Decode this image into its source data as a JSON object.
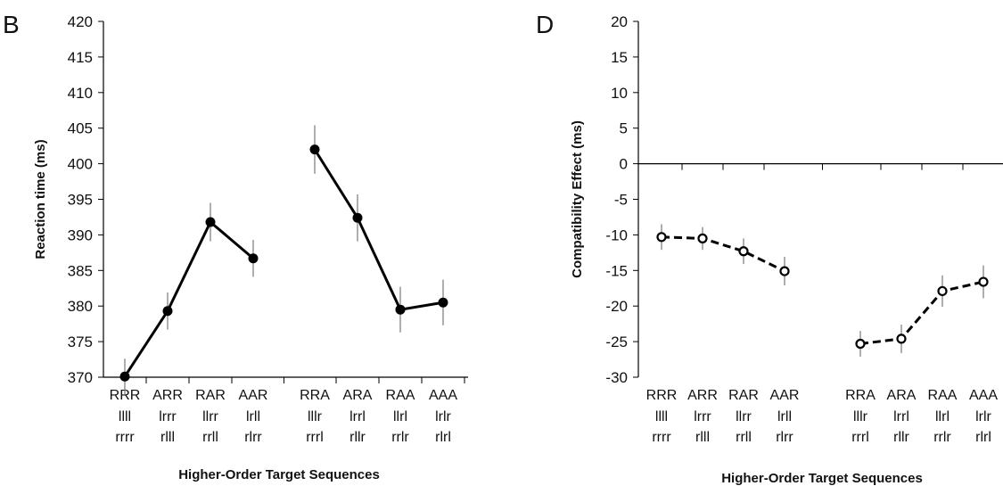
{
  "chart_data": [
    {
      "type": "line",
      "panel_label": "B",
      "title": "",
      "xlabel": "Higher-Order Target Sequences",
      "ylabel": "Reaction time (ms)",
      "ylim": [
        370,
        420
      ],
      "yticks": [
        370,
        375,
        380,
        385,
        390,
        395,
        400,
        405,
        410,
        415,
        420
      ],
      "grid": false,
      "legend": "none",
      "line_style": "solid",
      "marker": "filled-circle",
      "color": "#000000",
      "groups": [
        {
          "categories": [
            {
              "seq": "RRR",
              "l1": "llll",
              "l2": "rrrr"
            },
            {
              "seq": "ARR",
              "l1": "lrrr",
              "l2": "rlll"
            },
            {
              "seq": "RAR",
              "l1": "llrr",
              "l2": "rrll"
            },
            {
              "seq": "AAR",
              "l1": "lrll",
              "l2": "rlrr"
            }
          ],
          "values": [
            370.1,
            379.3,
            391.8,
            386.7
          ],
          "errors": [
            2.5,
            2.6,
            2.7,
            2.6
          ]
        },
        {
          "categories": [
            {
              "seq": "RRA",
              "l1": "lllr",
              "l2": "rrrl"
            },
            {
              "seq": "ARA",
              "l1": "lrrl",
              "l2": "rllr"
            },
            {
              "seq": "RAA",
              "l1": "llrl",
              "l2": "rrlr"
            },
            {
              "seq": "AAA",
              "l1": "lrlr",
              "l2": "rlrl"
            }
          ],
          "values": [
            402.0,
            392.4,
            379.5,
            380.5
          ],
          "errors": [
            3.4,
            3.3,
            3.2,
            3.2
          ]
        }
      ]
    },
    {
      "type": "line",
      "panel_label": "D",
      "title": "",
      "xlabel": "Higher-Order Target Sequences",
      "ylabel": "Compatibility Effect (ms)",
      "ylim": [
        -30,
        20
      ],
      "yticks": [
        -30,
        -25,
        -20,
        -15,
        -10,
        -5,
        0,
        5,
        10,
        15,
        20
      ],
      "grid": false,
      "legend": "none",
      "line_style": "dashed",
      "marker": "open-circle",
      "color": "#000000",
      "groups": [
        {
          "categories": [
            {
              "seq": "RRR",
              "l1": "llll",
              "l2": "rrrr"
            },
            {
              "seq": "ARR",
              "l1": "lrrr",
              "l2": "rlll"
            },
            {
              "seq": "RAR",
              "l1": "llrr",
              "l2": "rrll"
            },
            {
              "seq": "AAR",
              "l1": "lrll",
              "l2": "rlrr"
            }
          ],
          "values": [
            -10.3,
            -10.5,
            -12.3,
            -15.1
          ],
          "errors": [
            1.8,
            1.6,
            1.8,
            2.0
          ]
        },
        {
          "categories": [
            {
              "seq": "RRA",
              "l1": "lllr",
              "l2": "rrrl"
            },
            {
              "seq": "ARA",
              "l1": "lrrl",
              "l2": "rllr"
            },
            {
              "seq": "RAA",
              "l1": "llrl",
              "l2": "rrlr"
            },
            {
              "seq": "AAA",
              "l1": "lrlr",
              "l2": "rlrl"
            }
          ],
          "values": [
            -25.3,
            -24.6,
            -17.9,
            -16.6
          ],
          "errors": [
            1.8,
            2.0,
            2.2,
            2.3
          ]
        }
      ]
    }
  ]
}
